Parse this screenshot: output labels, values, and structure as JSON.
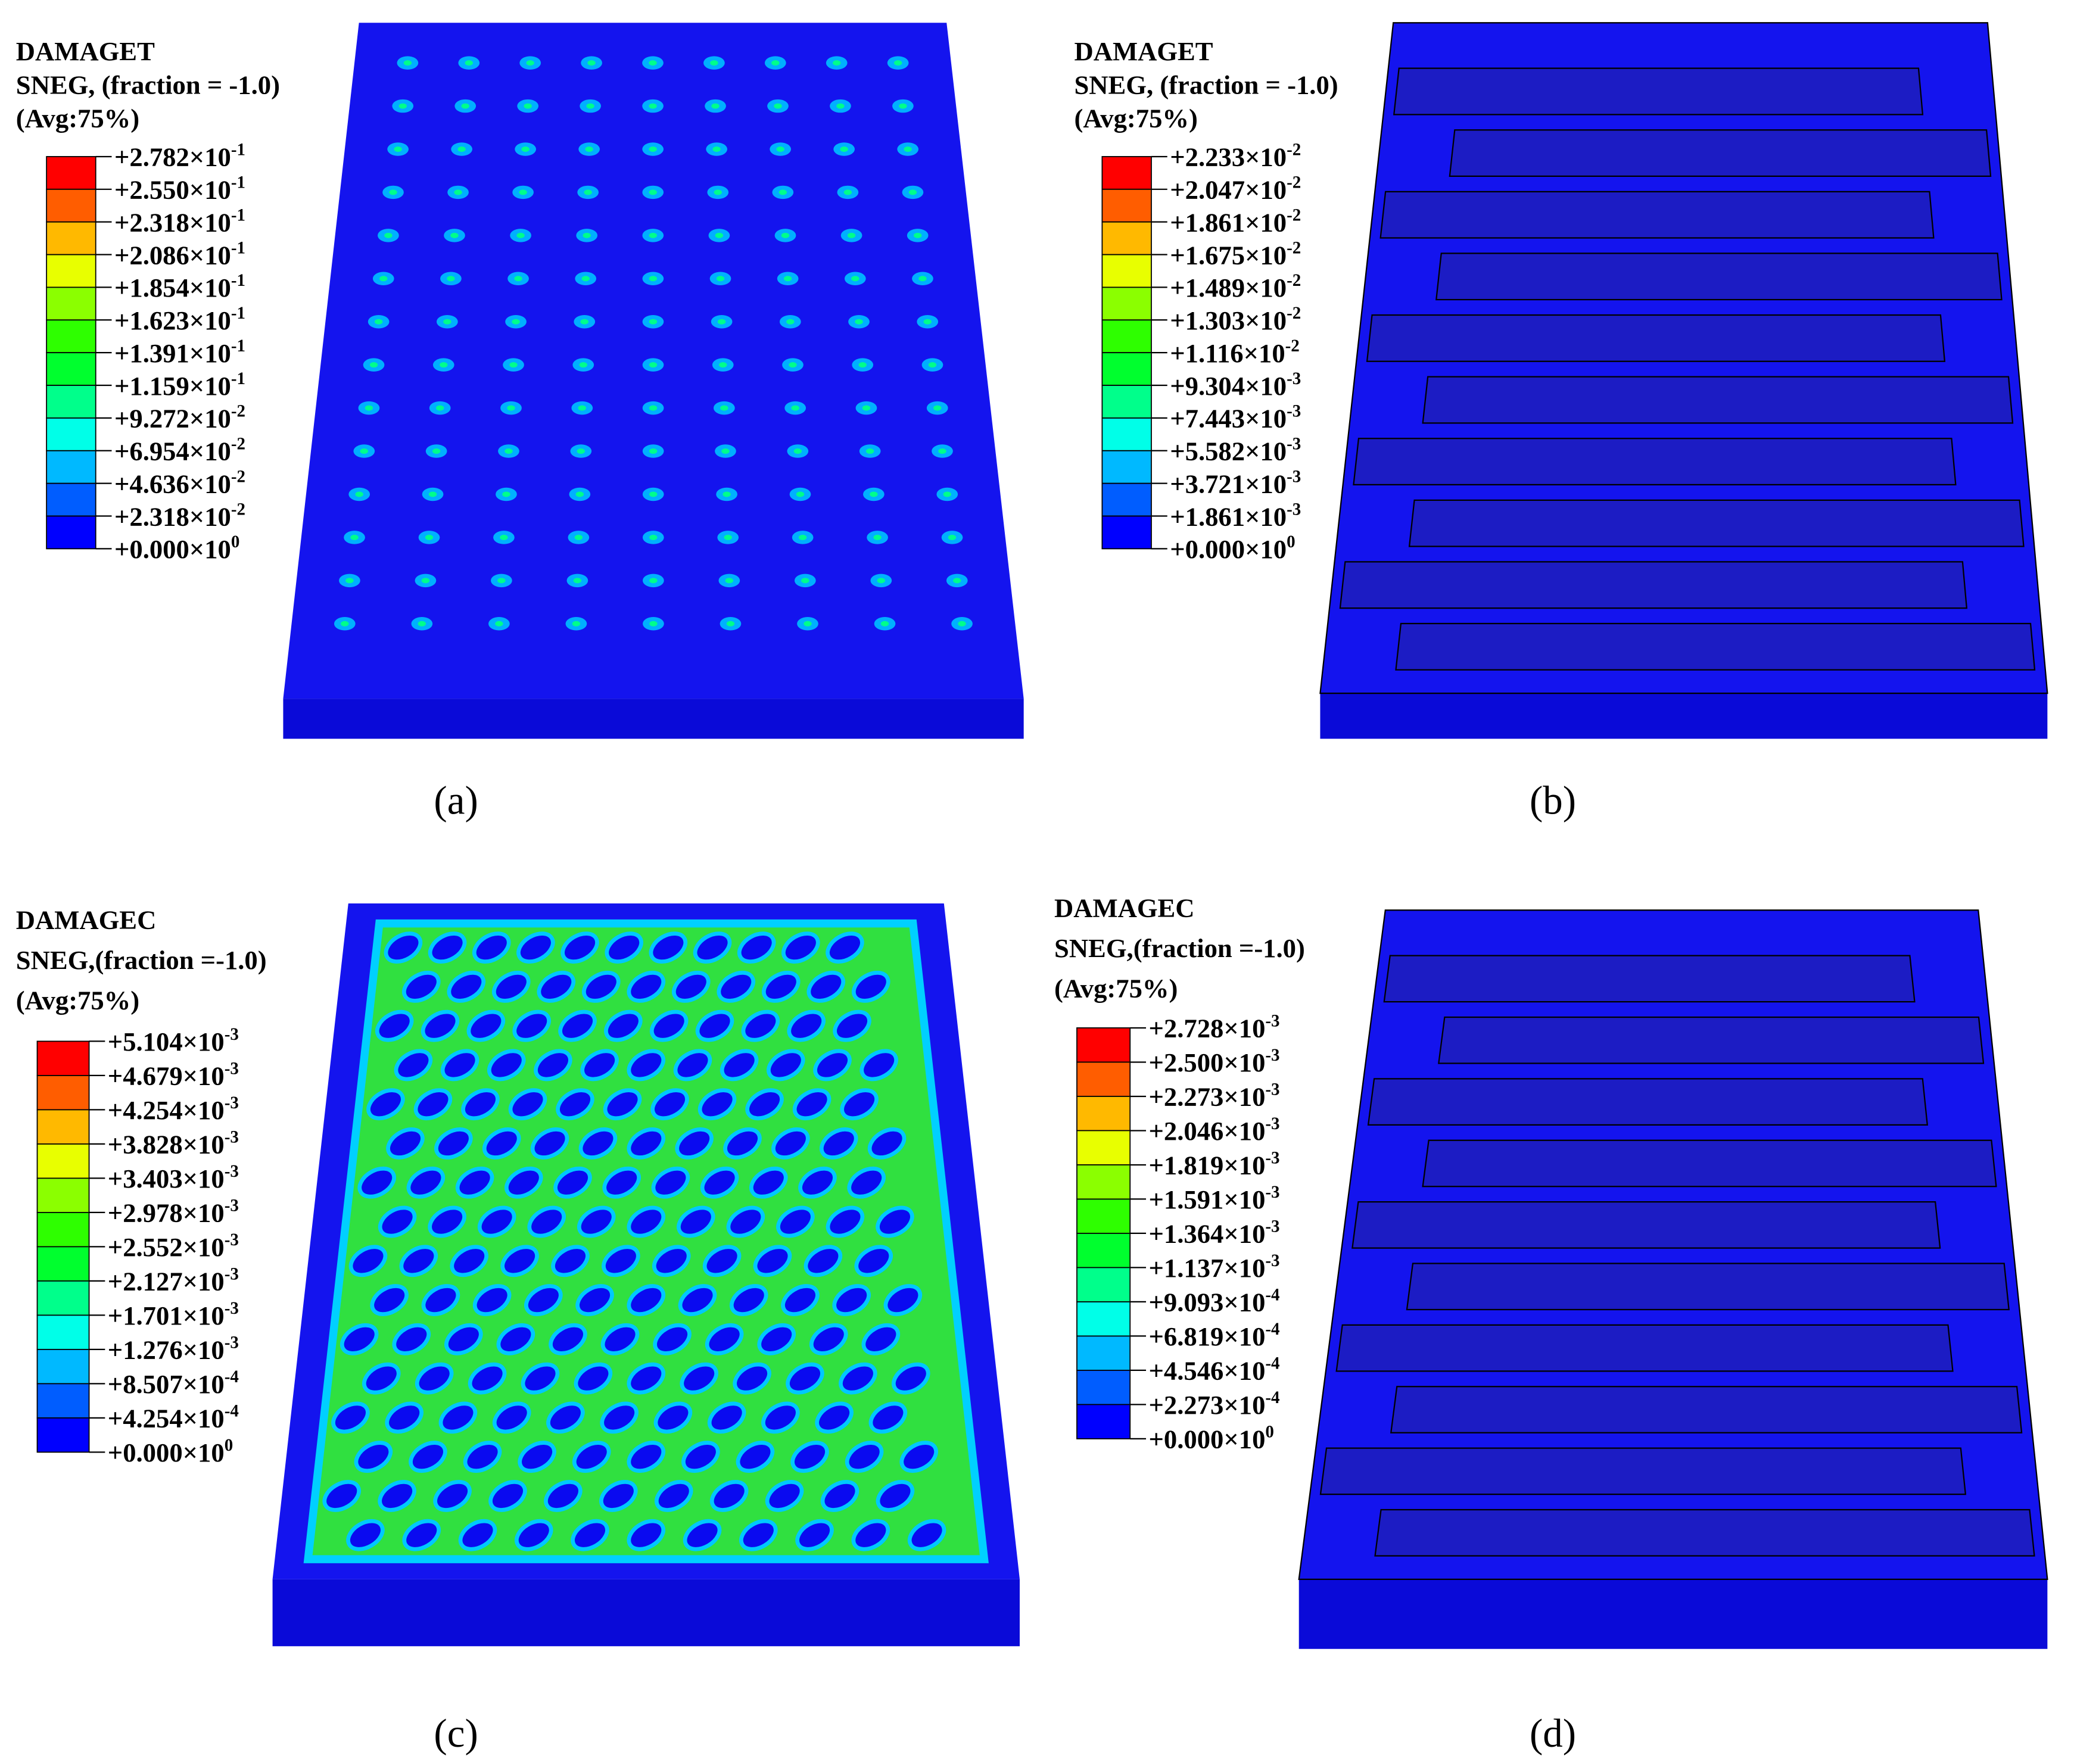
{
  "panels": [
    {
      "label": "(a)",
      "legend": {
        "title": [
          "DAMAGET",
          "SNEG, (fraction = -1.0)",
          "(Avg:75%)"
        ],
        "levels": [
          {
            "mantissa": "+2.782×10",
            "exponent": "-1"
          },
          {
            "mantissa": "+2.550×10",
            "exponent": "-1"
          },
          {
            "mantissa": "+2.318×10",
            "exponent": "-1"
          },
          {
            "mantissa": "+2.086×10",
            "exponent": "-1"
          },
          {
            "mantissa": "+1.854×10",
            "exponent": "-1"
          },
          {
            "mantissa": "+1.623×10",
            "exponent": "-1"
          },
          {
            "mantissa": "+1.391×10",
            "exponent": "-1"
          },
          {
            "mantissa": "+1.159×10",
            "exponent": "-1"
          },
          {
            "mantissa": "+9.272×10",
            "exponent": "-2"
          },
          {
            "mantissa": "+6.954×10",
            "exponent": "-2"
          },
          {
            "mantissa": "+4.636×10",
            "exponent": "-2"
          },
          {
            "mantissa": "+2.318×10",
            "exponent": "-2"
          },
          {
            "mantissa": "+0.000×10",
            "exponent": "0"
          }
        ]
      }
    },
    {
      "label": "(b)",
      "legend": {
        "title": [
          "DAMAGET",
          "SNEG, (fraction = -1.0)",
          "(Avg:75%)"
        ],
        "levels": [
          {
            "mantissa": "+2.233×10",
            "exponent": "-2"
          },
          {
            "mantissa": "+2.047×10",
            "exponent": "-2"
          },
          {
            "mantissa": "+1.861×10",
            "exponent": "-2"
          },
          {
            "mantissa": "+1.675×10",
            "exponent": "-2"
          },
          {
            "mantissa": "+1.489×10",
            "exponent": "-2"
          },
          {
            "mantissa": "+1.303×10",
            "exponent": "-2"
          },
          {
            "mantissa": "+1.116×10",
            "exponent": "-2"
          },
          {
            "mantissa": "+9.304×10",
            "exponent": "-3"
          },
          {
            "mantissa": "+7.443×10",
            "exponent": "-3"
          },
          {
            "mantissa": "+5.582×10",
            "exponent": "-3"
          },
          {
            "mantissa": "+3.721×10",
            "exponent": "-3"
          },
          {
            "mantissa": "+1.861×10",
            "exponent": "-3"
          },
          {
            "mantissa": "+0.000×10",
            "exponent": "0"
          }
        ]
      }
    },
    {
      "label": "(c)",
      "legend": {
        "title": [
          "DAMAGEC",
          "SNEG,(fraction =-1.0)",
          "(Avg:75%)"
        ],
        "levels": [
          {
            "mantissa": "+5.104×10",
            "exponent": "-3"
          },
          {
            "mantissa": "+4.679×10",
            "exponent": "-3"
          },
          {
            "mantissa": "+4.254×10",
            "exponent": "-3"
          },
          {
            "mantissa": "+3.828×10",
            "exponent": "-3"
          },
          {
            "mantissa": "+3.403×10",
            "exponent": "-3"
          },
          {
            "mantissa": "+2.978×10",
            "exponent": "-3"
          },
          {
            "mantissa": "+2.552×10",
            "exponent": "-3"
          },
          {
            "mantissa": "+2.127×10",
            "exponent": "-3"
          },
          {
            "mantissa": "+1.701×10",
            "exponent": "-3"
          },
          {
            "mantissa": "+1.276×10",
            "exponent": "-3"
          },
          {
            "mantissa": "+8.507×10",
            "exponent": "-4"
          },
          {
            "mantissa": "+4.254×10",
            "exponent": "-4"
          },
          {
            "mantissa": "+0.000×10",
            "exponent": "0"
          }
        ]
      }
    },
    {
      "label": "(d)",
      "legend": {
        "title": [
          "DAMAGEC",
          "SNEG,(fraction =-1.0)",
          "(Avg:75%)"
        ],
        "levels": [
          {
            "mantissa": "+2.728×10",
            "exponent": "-3"
          },
          {
            "mantissa": "+2.500×10",
            "exponent": "-3"
          },
          {
            "mantissa": "+2.273×10",
            "exponent": "-3"
          },
          {
            "mantissa": "+2.046×10",
            "exponent": "-3"
          },
          {
            "mantissa": "+1.819×10",
            "exponent": "-3"
          },
          {
            "mantissa": "+1.591×10",
            "exponent": "-3"
          },
          {
            "mantissa": "+1.364×10",
            "exponent": "-3"
          },
          {
            "mantissa": "+1.137×10",
            "exponent": "-3"
          },
          {
            "mantissa": "+9.093×10",
            "exponent": "-4"
          },
          {
            "mantissa": "+6.819×10",
            "exponent": "-4"
          },
          {
            "mantissa": "+4.546×10",
            "exponent": "-4"
          },
          {
            "mantissa": "+2.273×10",
            "exponent": "-4"
          },
          {
            "mantissa": "+0.000×10",
            "exponent": "0"
          }
        ]
      }
    }
  ],
  "colors": [
    "#ff0000",
    "#ff5d00",
    "#ffb900",
    "#e8ff00",
    "#8bff00",
    "#2eff00",
    "#00ff2e",
    "#00ff8b",
    "#00ffe8",
    "#00b9ff",
    "#005dff",
    "#0000ff"
  ]
}
